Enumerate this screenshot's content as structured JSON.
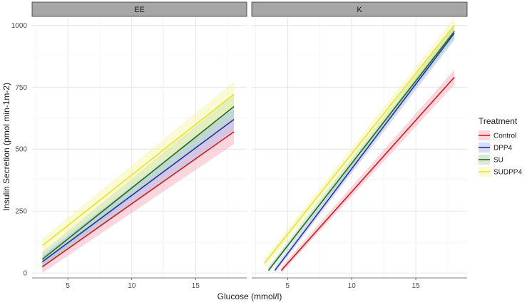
{
  "chart_data": {
    "type": "line",
    "xlabel": "Glucose (mmol/l)",
    "ylabel": "Insulin Secretion (pmol min-1m-2)",
    "xlim": [
      2.2,
      19.0
    ],
    "ylim": [
      -20,
      1030
    ],
    "x_ticks": [
      5,
      10,
      15
    ],
    "y_ticks": [
      0,
      250,
      500,
      750,
      1000
    ],
    "grid": true,
    "legend_title": "Treatment",
    "legend_position": "right",
    "series_styles": [
      {
        "name": "Control",
        "color": "#d7191c",
        "band": "#f4a6b5"
      },
      {
        "name": "DPP4",
        "color": "#1f2fbf",
        "band": "#a9b4e6"
      },
      {
        "name": "SU",
        "color": "#1b6f1b",
        "band": "#a9cfa9"
      },
      {
        "name": "SUDPP4",
        "color": "#e6e620",
        "band": "#f5f5a0"
      }
    ],
    "panels": [
      {
        "strip": "EE",
        "series": [
          {
            "name": "Control",
            "x": [
              3.0,
              18.0
            ],
            "y": [
              25,
              570
            ],
            "band": [
              [
                0,
                50
              ],
              [
                520,
                620
              ]
            ]
          },
          {
            "name": "DPP4",
            "x": [
              3.0,
              18.0
            ],
            "y": [
              45,
              620
            ],
            "band": [
              [
                20,
                70
              ],
              [
                575,
                665
              ]
            ]
          },
          {
            "name": "SU",
            "x": [
              3.0,
              18.0
            ],
            "y": [
              55,
              672
            ],
            "band": [
              [
                25,
                85
              ],
              [
                625,
                720
              ]
            ]
          },
          {
            "name": "SUDPP4",
            "x": [
              3.0,
              18.0
            ],
            "y": [
              110,
              722
            ],
            "band": [
              [
                80,
                140
              ],
              [
                672,
                772
              ]
            ]
          }
        ]
      },
      {
        "strip": "K",
        "series": [
          {
            "name": "Control",
            "x": [
              4.5,
              18.0
            ],
            "y": [
              10,
              790
            ],
            "band": [
              [
                0,
                25
              ],
              [
                760,
                820
              ]
            ]
          },
          {
            "name": "DPP4",
            "x": [
              4.0,
              18.0
            ],
            "y": [
              10,
              968
            ],
            "band": [
              [
                0,
                25
              ],
              [
                940,
                995
              ]
            ]
          },
          {
            "name": "SU",
            "x": [
              3.5,
              18.0
            ],
            "y": [
              10,
              975
            ],
            "band": [
              [
                0,
                25
              ],
              [
                948,
                1002
              ]
            ]
          },
          {
            "name": "SUDPP4",
            "x": [
              3.2,
              18.0
            ],
            "y": [
              40,
              1000
            ],
            "band": [
              [
                20,
                60
              ],
              [
                970,
                1030
              ]
            ]
          }
        ]
      }
    ]
  }
}
